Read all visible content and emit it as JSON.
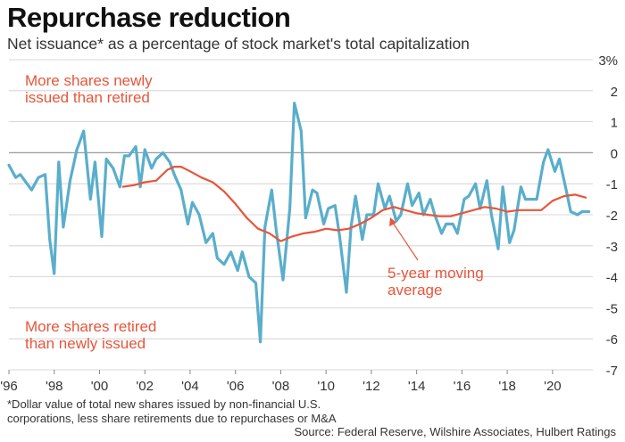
{
  "title": "Repurchase reduction",
  "subtitle": "Net issuance* as a percentage of stock market's total capitalization",
  "footnote_line1": "*Dollar value of total new shares issued by non-financial U.S.",
  "footnote_line2": "corporations, less share retirements due to repurchases or M&A",
  "source": "Source: Federal Reserve, Wilshire Associates, Hulbert Ratings",
  "annotations": {
    "top_line1": "More shares newly",
    "top_line2": "issued than retired",
    "bottom_line1": "More shares retired",
    "bottom_line2": "than newly issued",
    "ma_line1": "5-year moving",
    "ma_line2": "average"
  },
  "colors": {
    "net_issuance": "#5aaecb",
    "moving_average": "#e8553a",
    "annotation": "#e8553a",
    "grid": "#cccccc",
    "zero_line": "#999999"
  },
  "chart_data": {
    "type": "line",
    "ylim": [
      -7,
      3
    ],
    "xlim": [
      1996,
      2021.7
    ],
    "y_ticks": [
      3,
      2,
      1,
      0,
      -1,
      -2,
      -3,
      -4,
      -5,
      -6,
      -7
    ],
    "y_tick_labels": [
      "3%",
      "2",
      "1",
      "0",
      "-1",
      "-2",
      "-3",
      "-4",
      "-5",
      "-6",
      "-7"
    ],
    "x_ticks": [
      1996,
      1998,
      2000,
      2002,
      2004,
      2006,
      2008,
      2010,
      2012,
      2014,
      2016,
      2018,
      2020
    ],
    "x_tick_labels": [
      "'96",
      "'98",
      "'00",
      "'02",
      "'04",
      "'06",
      "'08",
      "'10",
      "'12",
      "'14",
      "'16",
      "'18",
      "'20"
    ],
    "grid": true,
    "series": [
      {
        "x": [
          1996.0,
          1996.3,
          1996.5,
          1996.8,
          1997.0,
          1997.3,
          1997.6,
          1997.8,
          1998.0,
          1998.2,
          1998.4,
          1998.7,
          1999.0,
          1999.3,
          1999.6,
          1999.8,
          2000.1,
          2000.3,
          2000.6,
          2000.9,
          2001.1,
          2001.3,
          2001.6,
          2001.8,
          2002.0,
          2002.3,
          2002.5,
          2002.8,
          2003.1,
          2003.3,
          2003.6,
          2003.9,
          2004.1,
          2004.4,
          2004.7,
          2005.0,
          2005.2,
          2005.5,
          2005.8,
          2006.1,
          2006.3,
          2006.6,
          2006.9,
          2007.1,
          2007.3,
          2007.6,
          2007.8,
          2008.1,
          2008.4,
          2008.6,
          2008.9,
          2009.1,
          2009.4,
          2009.6,
          2009.9,
          2010.1,
          2010.4,
          2010.6,
          2010.9,
          2011.1,
          2011.3,
          2011.6,
          2011.8,
          2012.1,
          2012.3,
          2012.6,
          2012.8,
          2013.1,
          2013.3,
          2013.6,
          2013.8,
          2014.1,
          2014.3,
          2014.6,
          2014.8,
          2015.1,
          2015.3,
          2015.6,
          2015.8,
          2016.1,
          2016.3,
          2016.6,
          2016.8,
          2017.1,
          2017.3,
          2017.6,
          2017.8,
          2018.1,
          2018.3,
          2018.6,
          2018.8,
          2019.1,
          2019.3,
          2019.6,
          2019.8,
          2020.1,
          2020.3,
          2020.6,
          2020.8,
          2021.1,
          2021.3,
          2021.6
        ],
        "y": [
          -0.4,
          -0.8,
          -0.7,
          -1.0,
          -1.2,
          -0.8,
          -0.7,
          -2.8,
          -3.9,
          -0.3,
          -2.4,
          -0.9,
          0.1,
          0.7,
          -1.5,
          -0.3,
          -2.7,
          -0.2,
          -0.5,
          -1.1,
          -0.1,
          -0.1,
          0.2,
          -1.1,
          0.1,
          -0.5,
          -0.2,
          0.0,
          -0.3,
          -0.7,
          -1.2,
          -2.3,
          -1.6,
          -2.0,
          -2.9,
          -2.6,
          -3.4,
          -3.6,
          -3.2,
          -3.8,
          -3.2,
          -4.0,
          -4.2,
          -6.1,
          -2.4,
          -1.2,
          -2.5,
          -4.1,
          -1.8,
          1.6,
          0.7,
          -2.1,
          -1.2,
          -1.3,
          -2.3,
          -1.8,
          -1.7,
          -2.7,
          -4.5,
          -2.4,
          -1.4,
          -2.8,
          -2.0,
          -2.0,
          -1.0,
          -1.8,
          -1.4,
          -2.2,
          -2.0,
          -1.0,
          -1.7,
          -1.3,
          -2.0,
          -1.5,
          -2.0,
          -2.6,
          -2.3,
          -2.3,
          -2.6,
          -1.5,
          -1.4,
          -1.0,
          -1.8,
          -0.9,
          -2.0,
          -3.1,
          -1.1,
          -2.9,
          -2.5,
          -1.1,
          -1.5,
          -1.5,
          -1.5,
          -0.3,
          0.1,
          -0.6,
          -0.2,
          -1.2,
          -1.9,
          -2.0,
          -1.9,
          -1.9
        ]
      },
      {
        "x": [
          2001.0,
          2001.5,
          2002.0,
          2002.5,
          2003.0,
          2003.3,
          2003.6,
          2004.0,
          2004.5,
          2005.0,
          2005.5,
          2006.0,
          2006.5,
          2007.0,
          2007.5,
          2008.0,
          2008.5,
          2009.0,
          2009.5,
          2010.0,
          2010.5,
          2011.0,
          2011.5,
          2012.0,
          2012.5,
          2013.0,
          2013.5,
          2014.0,
          2014.5,
          2015.0,
          2015.5,
          2016.0,
          2016.5,
          2017.0,
          2017.5,
          2018.0,
          2018.5,
          2019.0,
          2019.5,
          2020.0,
          2020.5,
          2021.0,
          2021.5
        ],
        "y": [
          -1.1,
          -1.05,
          -0.95,
          -0.9,
          -0.55,
          -0.45,
          -0.45,
          -0.6,
          -0.8,
          -0.95,
          -1.25,
          -1.65,
          -2.1,
          -2.45,
          -2.6,
          -2.85,
          -2.7,
          -2.6,
          -2.55,
          -2.45,
          -2.5,
          -2.45,
          -2.3,
          -2.1,
          -1.85,
          -1.75,
          -1.85,
          -1.95,
          -2.0,
          -2.05,
          -2.05,
          -1.95,
          -1.85,
          -1.75,
          -1.8,
          -1.9,
          -1.85,
          -1.85,
          -1.85,
          -1.55,
          -1.4,
          -1.35,
          -1.45
        ]
      }
    ]
  }
}
